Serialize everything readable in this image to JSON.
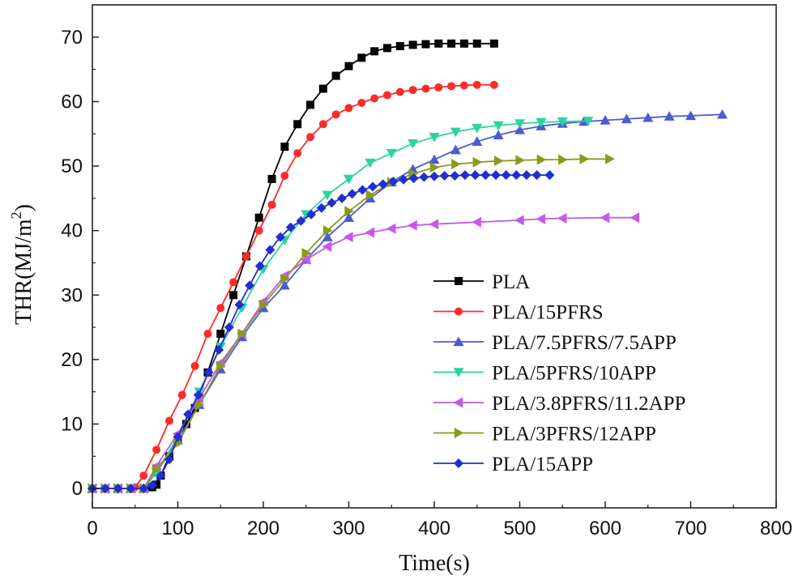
{
  "chart_data": {
    "type": "line",
    "title": "",
    "xlabel": "Time(s)",
    "ylabel": "THR(MJ/m",
    "ylabel_sup": "2",
    "ylabel_close": ")",
    "xlim": [
      0,
      800
    ],
    "ylim": [
      -3,
      75
    ],
    "xticks": [
      0,
      100,
      200,
      300,
      400,
      500,
      600,
      700,
      800
    ],
    "yticks": [
      0,
      10,
      20,
      30,
      40,
      50,
      60,
      70
    ],
    "grid": false,
    "legend_position": "right-center",
    "series": [
      {
        "name": "PLA",
        "color": "#000000",
        "marker": "square",
        "x": [
          0,
          15,
          30,
          45,
          60,
          70,
          75,
          80,
          90,
          100,
          110,
          120,
          135,
          150,
          165,
          180,
          195,
          210,
          225,
          240,
          255,
          270,
          285,
          300,
          315,
          330,
          345,
          360,
          375,
          390,
          405,
          420,
          435,
          450,
          470
        ],
        "y": [
          0,
          0,
          0,
          0,
          0,
          0.2,
          0.6,
          2.0,
          5.0,
          7.5,
          10.0,
          12.5,
          18.0,
          24.0,
          30.0,
          36.0,
          42.0,
          48.0,
          53.0,
          56.5,
          59.5,
          62.0,
          64.0,
          65.5,
          66.8,
          67.8,
          68.3,
          68.6,
          68.8,
          68.9,
          69.0,
          69.0,
          69.0,
          69.0,
          69.0
        ]
      },
      {
        "name": "PLA/15PFRS",
        "color": "#ff2a2a",
        "marker": "circle",
        "x": [
          0,
          15,
          30,
          45,
          50,
          60,
          75,
          90,
          105,
          120,
          135,
          150,
          165,
          180,
          195,
          210,
          225,
          240,
          255,
          270,
          285,
          300,
          315,
          330,
          345,
          360,
          375,
          390,
          405,
          420,
          435,
          450,
          470
        ],
        "y": [
          0,
          0,
          0,
          0,
          0.2,
          2.0,
          6.0,
          10.5,
          14.5,
          19.0,
          24.0,
          28.0,
          32.0,
          36.0,
          40.0,
          44.0,
          48.5,
          52.0,
          54.5,
          56.5,
          58.0,
          59.0,
          59.8,
          60.5,
          61.0,
          61.5,
          61.8,
          62.0,
          62.2,
          62.4,
          62.5,
          62.6,
          62.6
        ]
      },
      {
        "name": "PLA/7.5PFRS/7.5APP",
        "color": "#4a5bd6",
        "marker": "triangle-up",
        "x": [
          0,
          15,
          30,
          45,
          60,
          75,
          100,
          125,
          150,
          175,
          200,
          225,
          250,
          275,
          300,
          325,
          350,
          375,
          400,
          425,
          450,
          475,
          500,
          525,
          550,
          575,
          600,
          625,
          650,
          675,
          700,
          737
        ],
        "y": [
          0,
          0,
          0,
          0,
          0,
          2.5,
          7.5,
          13.0,
          18.5,
          23.5,
          28.0,
          31.5,
          35.5,
          39.0,
          42.0,
          45.0,
          47.5,
          49.5,
          51.0,
          52.5,
          53.8,
          54.8,
          55.6,
          56.2,
          56.6,
          56.9,
          57.1,
          57.3,
          57.5,
          57.7,
          57.8,
          58.0
        ]
      },
      {
        "name": "PLA/5PFRS/10APP",
        "color": "#2ad4a0",
        "marker": "triangle-down",
        "x": [
          0,
          15,
          30,
          45,
          60,
          75,
          100,
          125,
          150,
          175,
          200,
          225,
          250,
          275,
          300,
          325,
          350,
          375,
          400,
          425,
          450,
          475,
          500,
          525,
          550,
          580
        ],
        "y": [
          0,
          0,
          0,
          0,
          0,
          2.5,
          8.0,
          15.0,
          22.0,
          28.0,
          34.0,
          38.5,
          42.5,
          45.5,
          48.0,
          50.5,
          52.0,
          53.5,
          54.5,
          55.3,
          55.9,
          56.3,
          56.6,
          56.8,
          56.9,
          57.0
        ]
      },
      {
        "name": "PLA/3.8PFRS/11.2APP",
        "color": "#c45ae8",
        "marker": "triangle-left",
        "x": [
          0,
          15,
          30,
          45,
          60,
          75,
          100,
          125,
          150,
          175,
          200,
          225,
          250,
          275,
          300,
          325,
          350,
          375,
          400,
          450,
          500,
          525,
          550,
          600,
          635
        ],
        "y": [
          0,
          0,
          0,
          0,
          0,
          3.5,
          8.5,
          14.0,
          19.5,
          24.0,
          29.0,
          33.0,
          35.5,
          37.5,
          39.0,
          39.7,
          40.3,
          40.8,
          41.0,
          41.3,
          41.6,
          41.8,
          41.9,
          42.0,
          42.0
        ]
      },
      {
        "name": "PLA/3PFRS/12APP",
        "color": "#8a9a1a",
        "marker": "triangle-right",
        "x": [
          0,
          15,
          30,
          45,
          60,
          75,
          100,
          125,
          150,
          175,
          200,
          225,
          250,
          275,
          300,
          325,
          350,
          375,
          400,
          425,
          450,
          475,
          500,
          525,
          550,
          575,
          605
        ],
        "y": [
          0,
          0,
          0,
          0,
          0,
          3.0,
          7.0,
          13.0,
          19.0,
          24.0,
          28.5,
          32.5,
          36.5,
          40.0,
          43.0,
          45.5,
          47.5,
          48.8,
          49.8,
          50.3,
          50.6,
          50.8,
          50.9,
          51.0,
          51.0,
          51.1,
          51.1
        ]
      },
      {
        "name": "PLA/15APP",
        "color": "#1f2fd0",
        "marker": "diamond",
        "x": [
          0,
          15,
          30,
          45,
          60,
          70,
          80,
          90,
          100,
          112,
          124,
          136,
          148,
          160,
          172,
          184,
          196,
          208,
          220,
          232,
          244,
          256,
          268,
          280,
          292,
          304,
          316,
          328,
          340,
          352,
          364,
          376,
          388,
          400,
          412,
          424,
          436,
          448,
          460,
          472,
          484,
          496,
          508,
          520,
          535
        ],
        "y": [
          0,
          0,
          0,
          0,
          0,
          0.5,
          2.0,
          4.5,
          8.0,
          11.5,
          14.5,
          18.0,
          21.5,
          25.0,
          28.5,
          31.5,
          34.5,
          37.0,
          39.0,
          40.5,
          41.5,
          42.5,
          43.5,
          44.3,
          45.0,
          45.7,
          46.3,
          46.8,
          47.2,
          47.6,
          47.9,
          48.1,
          48.3,
          48.4,
          48.5,
          48.5,
          48.6,
          48.6,
          48.6,
          48.6,
          48.6,
          48.6,
          48.6,
          48.6,
          48.6
        ]
      }
    ]
  }
}
